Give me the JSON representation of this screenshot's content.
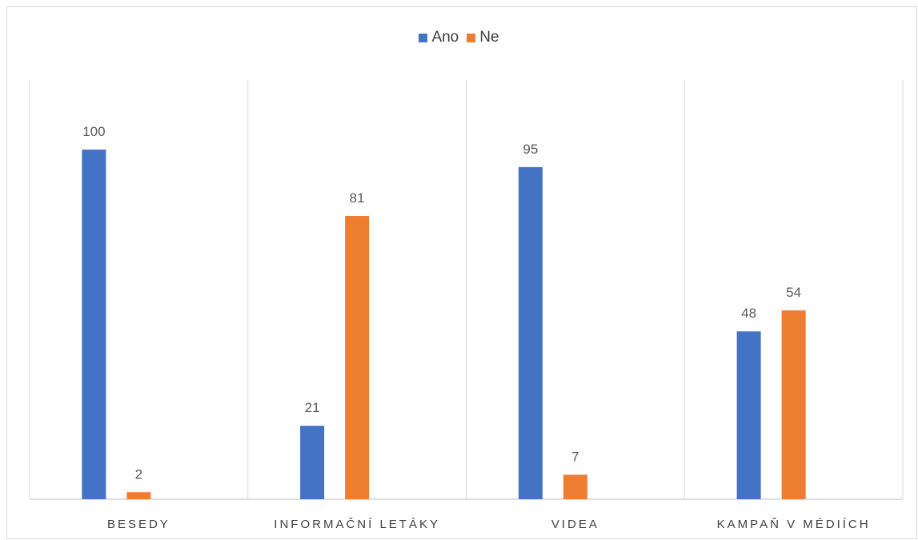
{
  "chart_data": {
    "type": "bar",
    "title": "",
    "xlabel": "",
    "ylabel": "",
    "ylim": [
      0,
      110
    ],
    "categories": [
      "BESEDY",
      "INFORMAČNÍ LETÁKY",
      "VIDEA",
      "KAMPAŇ V MÉDIÍCH"
    ],
    "series": [
      {
        "name": "Ano",
        "color": "#4472C4",
        "values": [
          100,
          21,
          95,
          48
        ]
      },
      {
        "name": "Ne",
        "color": "#ED7D31",
        "values": [
          2,
          81,
          7,
          54
        ]
      }
    ],
    "legend_position": "top",
    "grid": "vertical separators only",
    "data_labels": true
  }
}
